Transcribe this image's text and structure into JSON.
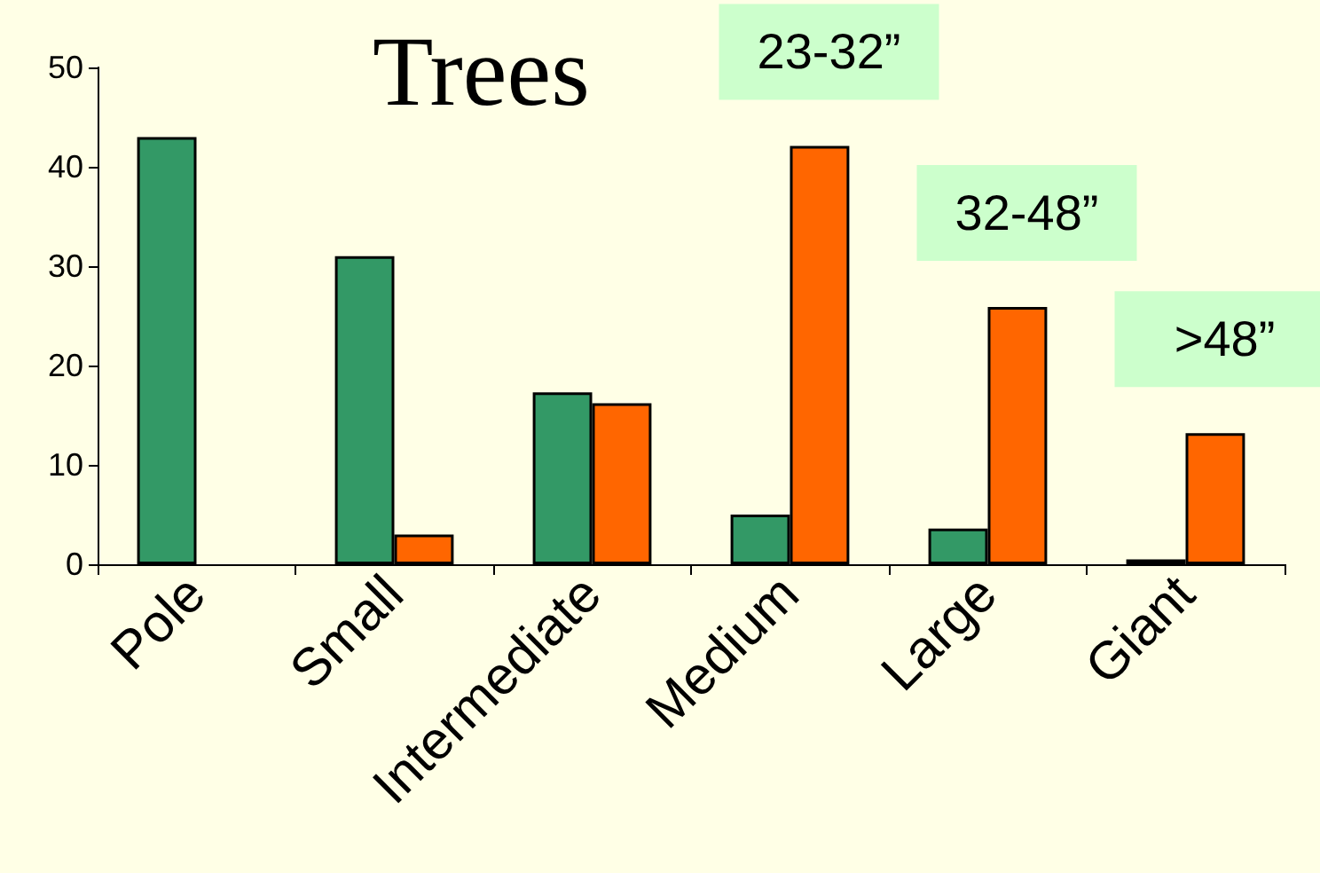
{
  "chart_data": {
    "type": "bar",
    "title": "Trees",
    "categories": [
      "Pole",
      "Small",
      "Intermediate",
      "Medium",
      "Large",
      "Giant"
    ],
    "series": [
      {
        "color": "#339966",
        "values": [
          43,
          31,
          17.3,
          5,
          3.6,
          0.5
        ]
      },
      {
        "color": "#ff6600",
        "values": [
          null,
          3,
          16.2,
          42.1,
          25.9,
          13.2
        ]
      }
    ],
    "ylim": [
      0,
      50
    ],
    "yticks": [
      0,
      10,
      20,
      30,
      40,
      50
    ],
    "grid": false,
    "annotations": [
      "23-32”",
      "32-48”",
      ">48”"
    ]
  }
}
